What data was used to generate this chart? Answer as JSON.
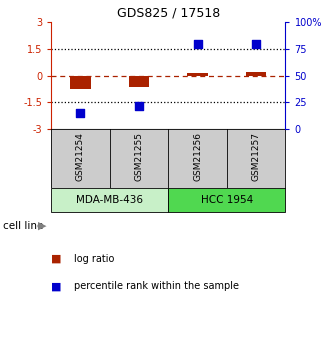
{
  "title": "GDS825 / 17518",
  "samples": [
    "GSM21254",
    "GSM21255",
    "GSM21256",
    "GSM21257"
  ],
  "log_ratio": [
    -0.75,
    -0.65,
    0.18,
    0.22
  ],
  "percentile_rank": [
    15,
    22,
    80,
    80
  ],
  "cell_lines": [
    {
      "label": "MDA-MB-436",
      "samples": [
        0,
        1
      ],
      "color": "#c8f0c8"
    },
    {
      "label": "HCC 1954",
      "samples": [
        2,
        3
      ],
      "color": "#50d850"
    }
  ],
  "ylim_left": [
    -3,
    3
  ],
  "ylim_right": [
    0,
    100
  ],
  "yticks_left": [
    -3,
    -1.5,
    0,
    1.5,
    3
  ],
  "yticks_right": [
    0,
    25,
    50,
    75,
    100
  ],
  "bar_color": "#aa2200",
  "dot_color": "#0000cc",
  "bar_width": 0.35,
  "dot_size": 35,
  "legend_items": [
    {
      "label": "log ratio",
      "color": "#aa2200"
    },
    {
      "label": "percentile rank within the sample",
      "color": "#0000cc"
    }
  ],
  "cell_line_label": "cell line",
  "sample_box_color": "#cccccc",
  "left_axis_color": "#cc2200",
  "right_axis_color": "#0000cc",
  "plot_bg": "#ffffff"
}
